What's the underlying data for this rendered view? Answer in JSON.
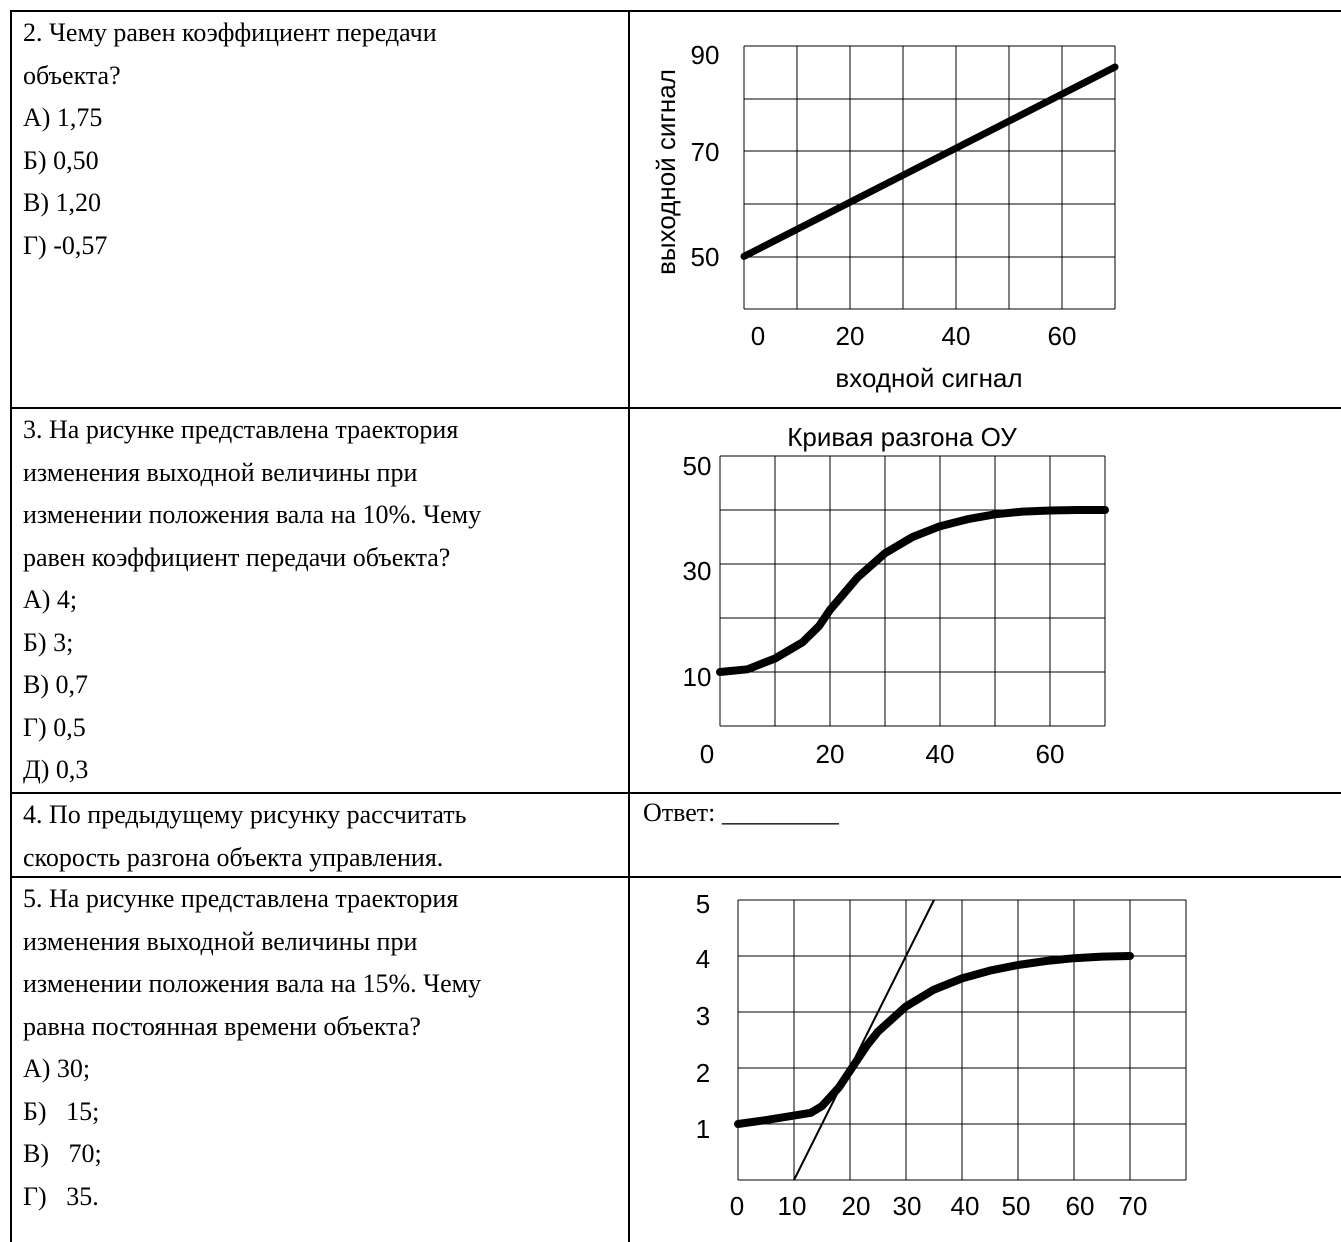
{
  "q2": {
    "question_lines": [
      "2. Чему равен коэффициент передачи",
      "объекта?"
    ],
    "options": [
      "А) 1,75",
      "Б) 0,50",
      "В) 1,20",
      "Г) -0,57"
    ]
  },
  "q3": {
    "question_lines": [
      "3. На рисунке представлена траектория",
      "изменения выходной величины при",
      "изменении положения вала на 10%. Чему",
      "равен коэффициент передачи объекта?"
    ],
    "options": [
      "А) 4;",
      "Б) 3;",
      "В) 0,7",
      "Г) 0,5",
      "Д) 0,3"
    ]
  },
  "q4": {
    "question_lines": [
      "4. По предыдущему рисунку рассчитать",
      "скорость разгона объекта управления."
    ],
    "answer_label": "Ответ: _________"
  },
  "q5": {
    "question_lines": [
      "5. На рисунке представлена траектория",
      "изменения выходной величины при",
      "изменении положения вала на 15%. Чему",
      "равна постоянная времени объекта?"
    ],
    "options": [
      "А) 30;",
      "Б)   15;",
      "В)   70;",
      "Г)   35."
    ]
  },
  "chart_data": [
    {
      "type": "line",
      "title": "",
      "xlabel": "входной сигнал",
      "ylabel": "выходной сигнал",
      "xlim": [
        0,
        70
      ],
      "ylim": [
        40,
        90
      ],
      "x_ticks": [
        "0",
        "20",
        "40",
        "60"
      ],
      "y_ticks": [
        "90",
        "70",
        "50"
      ],
      "grid": true,
      "series": [
        {
          "x": [
            0,
            70
          ],
          "y": [
            50,
            86
          ]
        }
      ]
    },
    {
      "type": "line",
      "title": "Кривая разгона ОУ",
      "xlabel": "",
      "ylabel": "",
      "xlim": [
        0,
        70
      ],
      "ylim": [
        0,
        50
      ],
      "x_ticks": [
        "0",
        "20",
        "40",
        "60"
      ],
      "y_ticks": [
        "50",
        "30",
        "10"
      ],
      "grid": true,
      "series": [
        {
          "x": [
            0,
            5,
            10,
            15,
            18,
            20,
            25,
            30,
            35,
            40,
            45,
            50,
            55,
            60,
            65,
            70
          ],
          "y": [
            10,
            10.5,
            12.5,
            15.5,
            18.5,
            21.5,
            27.5,
            32,
            35,
            37,
            38.3,
            39.2,
            39.7,
            39.9,
            40,
            40
          ]
        }
      ]
    },
    {
      "type": "line",
      "title": "",
      "xlabel": "",
      "ylabel": "",
      "xlim": [
        0,
        80
      ],
      "ylim": [
        0,
        5
      ],
      "x_ticks": [
        "0",
        "10",
        "20",
        "30",
        "40",
        "50",
        "60",
        "70"
      ],
      "y_ticks": [
        "5",
        "4",
        "3",
        "2",
        "1"
      ],
      "grid": true,
      "series": [
        {
          "x": [
            0,
            5,
            10,
            13,
            15,
            18,
            20,
            23,
            25,
            30,
            35,
            40,
            45,
            50,
            55,
            60,
            65,
            70
          ],
          "y": [
            1,
            1.07,
            1.15,
            1.2,
            1.32,
            1.65,
            1.95,
            2.4,
            2.65,
            3.1,
            3.4,
            3.6,
            3.74,
            3.84,
            3.91,
            3.96,
            3.99,
            4
          ]
        },
        {
          "x": [
            10,
            35
          ],
          "y": [
            0,
            5
          ]
        }
      ]
    }
  ]
}
